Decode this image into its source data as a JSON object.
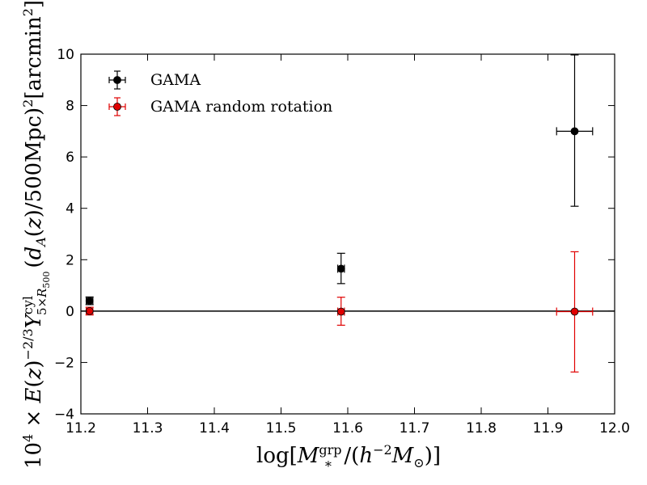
{
  "chart_data": {
    "type": "scatter",
    "xlabel": "log[M∗grp/(h−2M⊙)]",
    "ylabel": "10⁴ × E(z)−2/3 Y5×R500cyl (dA(z)/500Mpc)² [arcmin²]",
    "xlim": [
      11.2,
      12.0
    ],
    "ylim": [
      -4,
      10
    ],
    "x_ticks": [
      11.2,
      11.3,
      11.4,
      11.5,
      11.6,
      11.7,
      11.8,
      11.9,
      12.0
    ],
    "x_tick_labels": [
      "11.2",
      "11.3",
      "11.4",
      "11.5",
      "11.6",
      "11.7",
      "11.8",
      "11.9",
      "12.0"
    ],
    "y_ticks": [
      -4,
      -2,
      0,
      2,
      4,
      6,
      8,
      10
    ],
    "y_tick_labels": [
      "−4",
      "−2",
      "0",
      "2",
      "4",
      "6",
      "8",
      "10"
    ],
    "zero_line": true,
    "legend_position": "top-left",
    "series": [
      {
        "name": "GAMA",
        "color": "#000000",
        "points": [
          {
            "x": 11.213,
            "y": 0.4,
            "xerr": 0.005,
            "yerr_low": 0.15,
            "yerr_high": 0.15
          },
          {
            "x": 11.59,
            "y": 1.65,
            "xerr": 0.005,
            "yerr_low": 0.58,
            "yerr_high": 0.6
          },
          {
            "x": 11.94,
            "y": 7.0,
            "xerr": 0.027,
            "yerr_low": 2.92,
            "yerr_high": 2.97
          }
        ]
      },
      {
        "name": "GAMA random rotation",
        "color": "#e00000",
        "points": [
          {
            "x": 11.213,
            "y": 0.0,
            "xerr": 0.005,
            "yerr_low": 0.15,
            "yerr_high": 0.15
          },
          {
            "x": 11.59,
            "y": -0.02,
            "xerr": 0.005,
            "yerr_low": 0.53,
            "yerr_high": 0.56
          },
          {
            "x": 11.94,
            "y": -0.02,
            "xerr": 0.027,
            "yerr_low": 2.35,
            "yerr_high": 2.33
          }
        ]
      }
    ]
  }
}
